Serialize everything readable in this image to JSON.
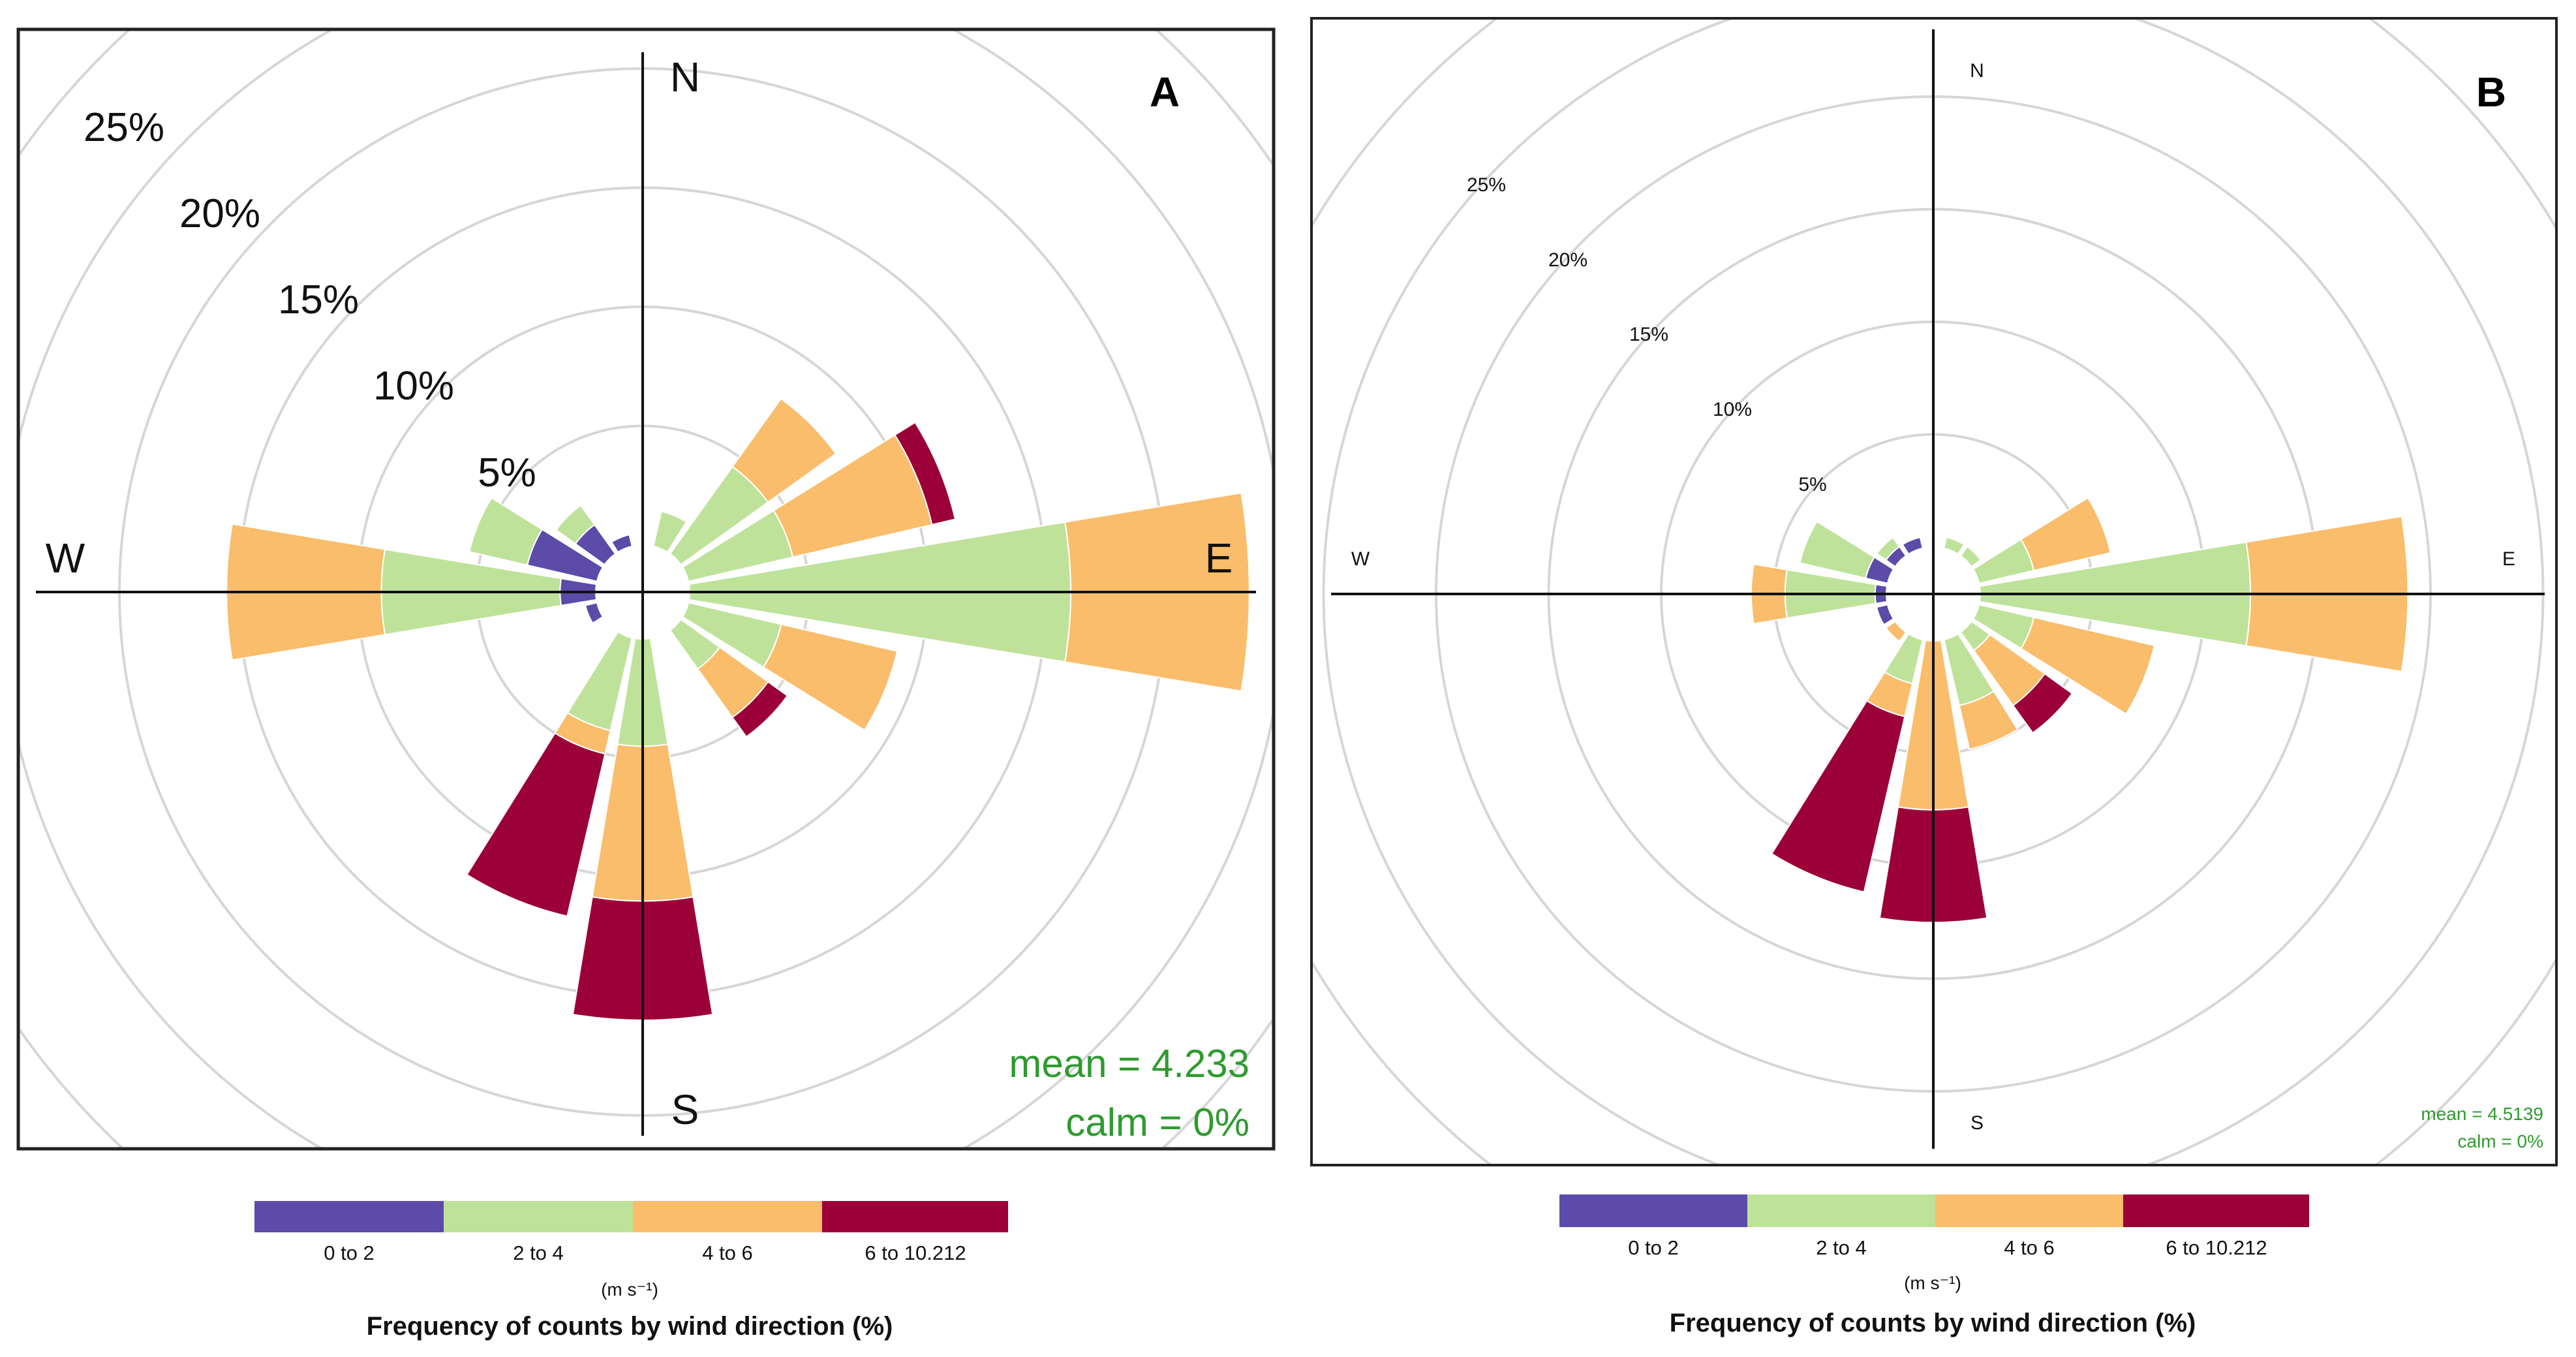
{
  "chart_data": [
    {
      "type": "windrose",
      "panel": "A",
      "directions": [
        "N",
        "NNE",
        "NE",
        "ENE",
        "E",
        "ESE",
        "SE",
        "SSE",
        "S",
        "SSW",
        "SW",
        "WSW",
        "W",
        "WNW",
        "NW",
        "NNW"
      ],
      "bin_labels": [
        "0 to 2",
        "2 to 4",
        "4 to 6",
        "6 to 10.212"
      ],
      "cumulative_percent": [
        [
          0.0,
          0.0,
          0.0,
          0.0
        ],
        [
          0.0,
          1.5,
          1.5,
          1.5
        ],
        [
          0.0,
          4.5,
          8.0,
          8.0
        ],
        [
          0.0,
          4.5,
          10.5,
          11.5
        ],
        [
          0.0,
          16.0,
          23.5,
          23.5
        ],
        [
          0.0,
          4.0,
          9.0,
          9.0
        ],
        [
          0.0,
          2.0,
          4.5,
          5.5
        ],
        [
          0.0,
          0.0,
          0.0,
          0.0
        ],
        [
          0.0,
          4.5,
          11.0,
          16.0
        ],
        [
          0.0,
          4.0,
          5.0,
          12.0
        ],
        [
          0.0,
          0.0,
          0.0,
          0.0
        ],
        [
          0.5,
          0.5,
          0.5,
          0.5
        ],
        [
          1.5,
          9.0,
          15.5,
          15.5
        ],
        [
          3.0,
          5.5,
          5.5,
          5.5
        ],
        [
          1.5,
          2.5,
          2.5,
          2.5
        ],
        [
          0.5,
          0.5,
          0.5,
          0.5
        ]
      ],
      "rings": [
        "5%",
        "10%",
        "15%",
        "20%",
        "25%"
      ],
      "compass": [
        "N",
        "E",
        "S",
        "W"
      ],
      "mean_text": "mean = 4.233",
      "calm_text": "calm = 0%"
    },
    {
      "type": "windrose",
      "panel": "B",
      "directions": [
        "N",
        "NNE",
        "NE",
        "ENE",
        "E",
        "ESE",
        "SE",
        "SSE",
        "S",
        "SSW",
        "SW",
        "WSW",
        "W",
        "WNW",
        "NW",
        "NNW"
      ],
      "bin_labels": [
        "0 to 2",
        "2 to 4",
        "4 to 6",
        "6 to 10.212"
      ],
      "cumulative_percent": [
        [
          0.0,
          0.0,
          0.0,
          0.0
        ],
        [
          0.0,
          0.5,
          0.5,
          0.5
        ],
        [
          0.0,
          0.5,
          0.5,
          0.5
        ],
        [
          0.0,
          2.5,
          6.0,
          6.0
        ],
        [
          0.0,
          12.0,
          19.0,
          19.0
        ],
        [
          0.0,
          2.5,
          8.0,
          8.0
        ],
        [
          0.0,
          1.0,
          4.0,
          5.5
        ],
        [
          0.0,
          3.0,
          5.0,
          5.0
        ],
        [
          0.0,
          0.0,
          7.5,
          12.5
        ],
        [
          0.0,
          2.0,
          3.5,
          11.5
        ],
        [
          0.0,
          0.0,
          0.5,
          0.5
        ],
        [
          0.5,
          0.5,
          0.5,
          0.5
        ],
        [
          0.5,
          4.5,
          6.0,
          6.0
        ],
        [
          1.0,
          4.0,
          4.0,
          4.0
        ],
        [
          0.5,
          1.0,
          1.0,
          1.0
        ],
        [
          0.5,
          0.5,
          0.5,
          0.5
        ]
      ],
      "rings": [
        "5%",
        "10%",
        "15%",
        "20%",
        "25%"
      ],
      "compass": [
        "N",
        "E",
        "S",
        "W"
      ],
      "mean_text": "mean = 4.5139",
      "calm_text": "calm = 0%"
    }
  ],
  "legend": {
    "bins": [
      "0 to 2",
      "2 to 4",
      "4 to 6",
      "6 to 10.212"
    ],
    "unit": "(m s⁻¹)",
    "title": "Frequency of counts by wind direction (%)"
  },
  "colors": {
    "bin0": "#5c4ba8",
    "bin1": "#bfe29a",
    "bin2": "#f9bd6b",
    "bin3": "#9b0038",
    "ring": "#d6d6d6",
    "stat": "#2e9b2e"
  }
}
